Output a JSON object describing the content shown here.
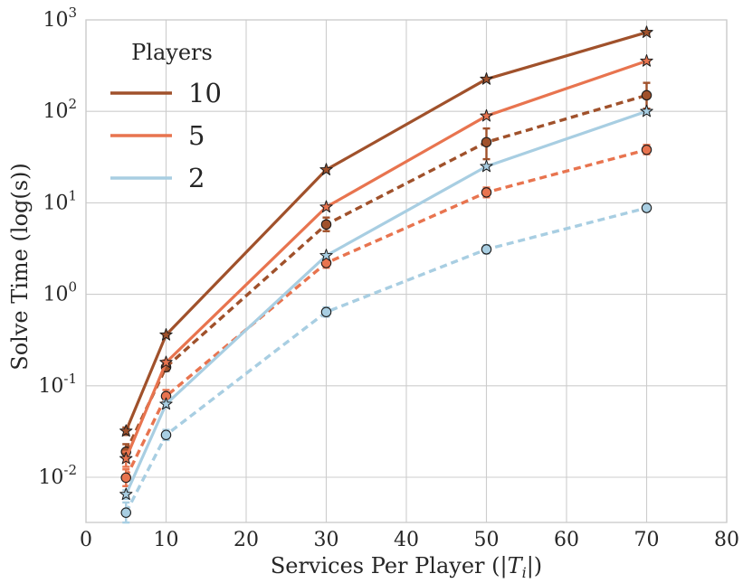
{
  "chart_data": {
    "type": "line",
    "title": "",
    "xlabel": "Services Per Player (|Ti|)",
    "xlabel_parts": {
      "prefix": "Services Per Player (|",
      "var": "T",
      "sub": "i",
      "suffix": "|)"
    },
    "ylabel": "Solve Time (log(s))",
    "y_scale": "log",
    "y_tick_base": "10",
    "y_tick_exponents": [
      3,
      2,
      1,
      0,
      -1,
      -2
    ],
    "x_ticks": [
      0,
      10,
      20,
      30,
      40,
      50,
      60,
      70,
      80
    ],
    "xlim": [
      0,
      80
    ],
    "ylim": [
      0.0032,
      1000
    ],
    "grid": true,
    "legend": {
      "title": "Players",
      "position": "upper-left",
      "entries": [
        {
          "label": "10",
          "color": "#A0512B"
        },
        {
          "label": "5",
          "color": "#E8744F"
        },
        {
          "label": "2",
          "color": "#A8CEE2"
        }
      ]
    },
    "x": [
      5,
      10,
      30,
      50,
      70
    ],
    "series": [
      {
        "name": "players-2-dashed",
        "players": "2",
        "style": "dashed",
        "marker": "circle",
        "color": "#A8CEE2",
        "values": [
          0.0041,
          0.029,
          0.64,
          3.1,
          8.8
        ],
        "err": [
          [
            0.0032,
            0.0053
          ],
          [
            0.0255,
            0.033
          ],
          [
            0.57,
            0.72
          ],
          [
            2.8,
            3.45
          ],
          [
            8.1,
            9.6
          ]
        ]
      },
      {
        "name": "players-5-dashed",
        "players": "5",
        "style": "dashed",
        "marker": "circle",
        "color": "#E8744F",
        "values": [
          0.0099,
          0.077,
          2.2,
          13,
          38
        ],
        "err": [
          [
            0.008,
            0.0122
          ],
          [
            0.066,
            0.09
          ],
          [
            1.95,
            2.5
          ],
          [
            11.5,
            14.7
          ],
          [
            34,
            43
          ]
        ]
      },
      {
        "name": "players-10-dashed",
        "players": "10",
        "style": "dashed",
        "marker": "circle",
        "color": "#A0512B",
        "values": [
          0.019,
          0.16,
          5.8,
          46,
          150
        ],
        "err": [
          [
            0.016,
            0.023
          ],
          [
            0.145,
            0.175
          ],
          [
            4.9,
            6.9
          ],
          [
            30,
            65
          ],
          [
            107,
            205
          ]
        ]
      },
      {
        "name": "players-2-solid",
        "players": "2",
        "style": "solid",
        "marker": "star",
        "color": "#A8CEE2",
        "values": [
          0.0065,
          0.063,
          2.65,
          25,
          100
        ],
        "err": [
          [
            0.0058,
            0.0072
          ],
          [
            0.058,
            0.068
          ],
          [
            2.6,
            2.7
          ],
          [
            24.5,
            25.5
          ],
          [
            97,
            103
          ]
        ]
      },
      {
        "name": "players-5-solid",
        "players": "5",
        "style": "solid",
        "marker": "star",
        "color": "#E8744F",
        "values": [
          0.016,
          0.18,
          9.0,
          89,
          355
        ],
        "err": [
          [
            0.013,
            0.019
          ],
          [
            0.17,
            0.19
          ],
          [
            8.8,
            9.2
          ],
          [
            87,
            91
          ],
          [
            345,
            365
          ]
        ]
      },
      {
        "name": "players-10-solid",
        "players": "10",
        "style": "solid",
        "marker": "star",
        "color": "#A0512B",
        "values": [
          0.032,
          0.36,
          23,
          225,
          730
        ],
        "err": [
          [
            0.029,
            0.035
          ],
          [
            0.35,
            0.37
          ],
          [
            22.5,
            23.5
          ],
          [
            220,
            230
          ],
          [
            710,
            750
          ]
        ]
      }
    ],
    "colors": {
      "players_10": "#A0512B",
      "players_5": "#E8744F",
      "players_2": "#A8CEE2",
      "grid": "#CDCDCD",
      "spine": "#C9C9C9",
      "text": "#262626",
      "marker_edge": "#1C1C1C",
      "background": "#FFFFFF"
    }
  }
}
